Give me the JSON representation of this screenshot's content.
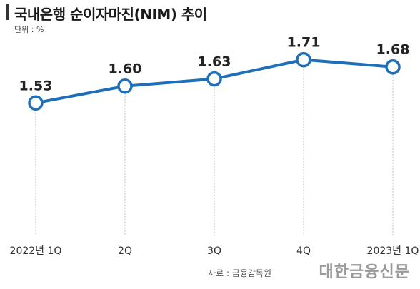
{
  "header": {
    "title": "국내은행 순이자마진(NIM) 추이",
    "unit": "단위 : %"
  },
  "footer": {
    "source": "자료 : 금융감독원",
    "brand": "대한금융신문"
  },
  "colors": {
    "line": "#1f6fb8",
    "marker_fill": "#ffffff",
    "guide": "#bbbbbb",
    "label": "#222222"
  },
  "chart_data": {
    "type": "line",
    "title": "국내은행 순이자마진(NIM) 추이",
    "categories": [
      "2022년 1Q",
      "2Q",
      "3Q",
      "4Q",
      "2023년 1Q"
    ],
    "series": [
      {
        "values": [
          1.53,
          1.6,
          1.63,
          1.71,
          1.68
        ]
      }
    ],
    "value_labels": [
      "1.53",
      "1.60",
      "1.63",
      "1.71",
      "1.68"
    ],
    "ylabel": "단위 : %",
    "ylim": [
      1.35,
      1.78
    ],
    "grid": false,
    "legend": "none"
  }
}
